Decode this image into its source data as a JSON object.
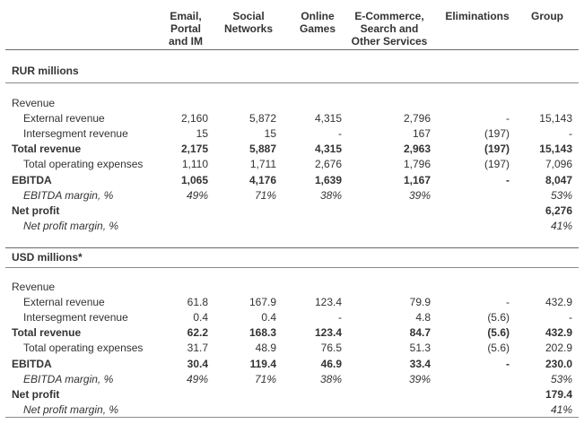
{
  "headers": [
    "Email, Portal and IM",
    "Social Networks",
    "Online Games",
    "E-Commerce, Search and Other Services",
    "Eliminations",
    "Group"
  ],
  "header_lines": [
    [
      "Email,",
      "Portal",
      "and IM"
    ],
    [
      "Social",
      "Networks"
    ],
    [
      "Online",
      "Games"
    ],
    [
      "E-Commerce,",
      "Search and",
      "Other Services"
    ],
    [
      "Eliminations"
    ],
    [
      "Group"
    ]
  ],
  "sections": [
    {
      "title": "RUR millions",
      "rows": [
        {
          "label": "Revenue",
          "style": "plain",
          "indent": false,
          "values": [
            "",
            "",
            "",
            "",
            "",
            ""
          ]
        },
        {
          "label": "External revenue",
          "style": "plain",
          "indent": true,
          "values": [
            "2,160",
            "5,872",
            "4,315",
            "2,796",
            "-",
            "15,143"
          ]
        },
        {
          "label": "Intersegment revenue",
          "style": "plain",
          "indent": true,
          "values": [
            "15",
            "15",
            "-",
            "167",
            "(197)",
            "-"
          ]
        },
        {
          "label": "Total revenue",
          "style": "bold",
          "indent": false,
          "values": [
            "2,175",
            "5,887",
            "4,315",
            "2,963",
            "(197)",
            "15,143"
          ]
        },
        {
          "label": "Total operating expenses",
          "style": "plain",
          "indent": true,
          "values": [
            "1,110",
            "1,711",
            "2,676",
            "1,796",
            "(197)",
            "7,096"
          ]
        },
        {
          "label": "EBITDA",
          "style": "bold",
          "indent": false,
          "values": [
            "1,065",
            "4,176",
            "1,639",
            "1,167",
            "-",
            "8,047"
          ]
        },
        {
          "label": "EBITDA margin, %",
          "style": "ital",
          "indent": true,
          "values": [
            "49%",
            "71%",
            "38%",
            "39%",
            "",
            "53%"
          ]
        },
        {
          "label": "Net profit",
          "style": "bold",
          "indent": false,
          "values": [
            "",
            "",
            "",
            "",
            "",
            "6,276"
          ]
        },
        {
          "label": "Net profit margin, %",
          "style": "ital",
          "indent": true,
          "values": [
            "",
            "",
            "",
            "",
            "",
            "41%"
          ]
        }
      ]
    },
    {
      "title": "USD millions*",
      "rows": [
        {
          "label": "Revenue",
          "style": "plain",
          "indent": false,
          "values": [
            "",
            "",
            "",
            "",
            "",
            ""
          ]
        },
        {
          "label": "External revenue",
          "style": "plain",
          "indent": true,
          "values": [
            "61.8",
            "167.9",
            "123.4",
            "79.9",
            "-",
            "432.9"
          ]
        },
        {
          "label": "Intersegment revenue",
          "style": "plain",
          "indent": true,
          "values": [
            "0.4",
            "0.4",
            "-",
            "4.8",
            "(5.6)",
            "-"
          ]
        },
        {
          "label": "Total revenue",
          "style": "bold",
          "indent": false,
          "values": [
            "62.2",
            "168.3",
            "123.4",
            "84.7",
            "(5.6)",
            "432.9"
          ]
        },
        {
          "label": "Total operating expenses",
          "style": "plain",
          "indent": true,
          "values": [
            "31.7",
            "48.9",
            "76.5",
            "51.3",
            "(5.6)",
            "202.9"
          ]
        },
        {
          "label": "EBITDA",
          "style": "bold",
          "indent": false,
          "values": [
            "30.4",
            "119.4",
            "46.9",
            "33.4",
            "-",
            "230.0"
          ]
        },
        {
          "label": "EBITDA margin, %",
          "style": "ital",
          "indent": true,
          "values": [
            "49%",
            "71%",
            "38%",
            "39%",
            "",
            "53%"
          ]
        },
        {
          "label": "Net profit",
          "style": "bold",
          "indent": false,
          "values": [
            "",
            "",
            "",
            "",
            "",
            "179.4"
          ]
        },
        {
          "label": "Net profit margin, %",
          "style": "ital",
          "indent": true,
          "values": [
            "",
            "",
            "",
            "",
            "",
            "41%"
          ]
        }
      ]
    }
  ]
}
